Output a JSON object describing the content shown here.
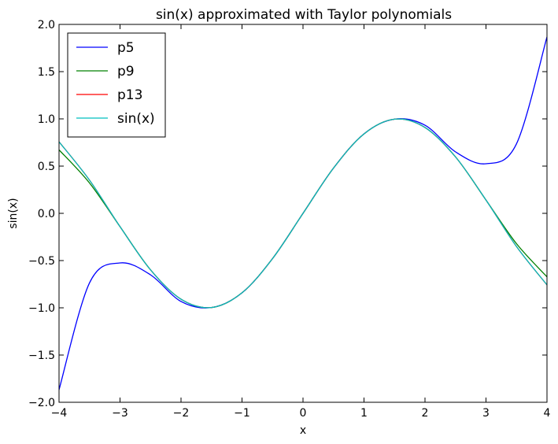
{
  "chart_data": {
    "type": "line",
    "title": "sin(x) approximated with Taylor polynomials",
    "xlabel": "x",
    "ylabel": "sin(x)",
    "xlim": [
      -4,
      4
    ],
    "ylim": [
      -2.0,
      2.0
    ],
    "x_ticks": [
      -4,
      -3,
      -2,
      -1,
      0,
      1,
      2,
      3,
      4
    ],
    "x_tick_labels": [
      "−4",
      "−3",
      "−2",
      "−1",
      "0",
      "1",
      "2",
      "3",
      "4"
    ],
    "y_ticks": [
      -2.0,
      -1.5,
      -1.0,
      -0.5,
      0.0,
      0.5,
      1.0,
      1.5,
      2.0
    ],
    "y_tick_labels": [
      "−2.0",
      "−1.5",
      "−1.0",
      "−0.5",
      "0.0",
      "0.5",
      "1.0",
      "1.5",
      "2.0"
    ],
    "grid": false,
    "legend_position": "top-left",
    "x": [
      -4.0,
      -3.5,
      -3.0,
      -2.5,
      -2.0,
      -1.5,
      -1.0,
      -0.5,
      0.0,
      0.5,
      1.0,
      1.5,
      2.0,
      2.5,
      3.0,
      3.5,
      4.0
    ],
    "series": [
      {
        "name": "p5",
        "color": "#0000ff",
        "values": [
          -1.867,
          -0.736,
          -0.525,
          -0.651,
          -0.933,
          -0.997,
          -0.842,
          -0.479,
          0.0,
          0.479,
          0.842,
          0.997,
          0.933,
          0.651,
          0.525,
          0.736,
          1.867
        ]
      },
      {
        "name": "p9",
        "color": "#008000",
        "values": [
          0.672,
          0.321,
          -0.141,
          -0.598,
          -0.909,
          -0.997,
          -0.841,
          -0.479,
          0.0,
          0.479,
          0.841,
          0.997,
          0.909,
          0.598,
          0.141,
          -0.321,
          -0.672
        ]
      },
      {
        "name": "p13",
        "color": "#ff0000",
        "values": [
          0.758,
          0.351,
          -0.141,
          -0.598,
          -0.909,
          -0.997,
          -0.841,
          -0.479,
          0.0,
          0.479,
          0.841,
          0.997,
          0.909,
          0.598,
          0.141,
          -0.351,
          -0.758
        ]
      },
      {
        "name": "sin(x)",
        "color": "#00bfbf",
        "values": [
          0.757,
          0.351,
          -0.141,
          -0.598,
          -0.909,
          -0.997,
          -0.841,
          -0.479,
          0.0,
          0.479,
          0.841,
          0.997,
          0.909,
          0.598,
          0.141,
          -0.351,
          -0.757
        ]
      }
    ]
  }
}
